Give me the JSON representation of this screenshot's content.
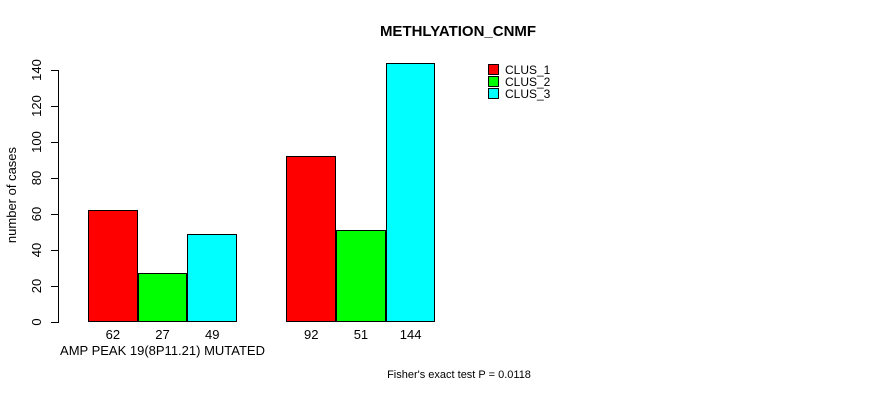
{
  "chart_data": {
    "type": "bar",
    "title": "METHLYATION_CNMF",
    "ylabel": "number of cases",
    "ylim": [
      0,
      140
    ],
    "yticks": [
      0,
      20,
      40,
      60,
      80,
      100,
      120,
      140
    ],
    "categories": [
      "AMP PEAK 19(8P11.21) MUTATED",
      ""
    ],
    "series": [
      {
        "name": "CLUS_1",
        "color": "#ff0000",
        "values": [
          62,
          92
        ]
      },
      {
        "name": "CLUS_2",
        "color": "#00ff00",
        "values": [
          27,
          51
        ]
      },
      {
        "name": "CLUS_3",
        "color": "#00ffff",
        "values": [
          49,
          144
        ]
      }
    ],
    "bar_value_labels": [
      [
        62,
        27,
        49
      ],
      [
        92,
        51,
        144
      ]
    ],
    "legend": {
      "entries": [
        "CLUS_1",
        "CLUS_2",
        "CLUS_3"
      ],
      "position": "top-right",
      "box": false
    },
    "annotation": "Fisher's exact test P = 0.0118",
    "grid": false,
    "background": "#ffffff",
    "axis_color": "#000000",
    "text_color": "#000000"
  }
}
